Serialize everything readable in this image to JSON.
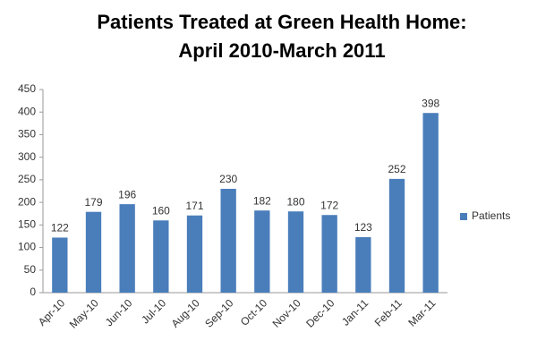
{
  "chart_data": {
    "type": "bar",
    "title": "Patients Treated at Green Health Home:",
    "subtitle": "April 2010-March 2011",
    "categories": [
      "Apr-10",
      "May-10",
      "Jun-10",
      "Jul-10",
      "Aug-10",
      "Sep-10",
      "Oct-10",
      "Nov-10",
      "Dec-10",
      "Jan-11",
      "Feb-11",
      "Mar-11"
    ],
    "series": [
      {
        "name": "Patients",
        "color": "#4a7ebb",
        "values": [
          122,
          179,
          196,
          160,
          171,
          230,
          182,
          180,
          172,
          123,
          252,
          398
        ]
      }
    ],
    "ylim": [
      0,
      450
    ],
    "yticks": [
      0,
      50,
      100,
      150,
      200,
      250,
      300,
      350,
      400,
      450
    ],
    "grid": false,
    "legend": "right"
  }
}
